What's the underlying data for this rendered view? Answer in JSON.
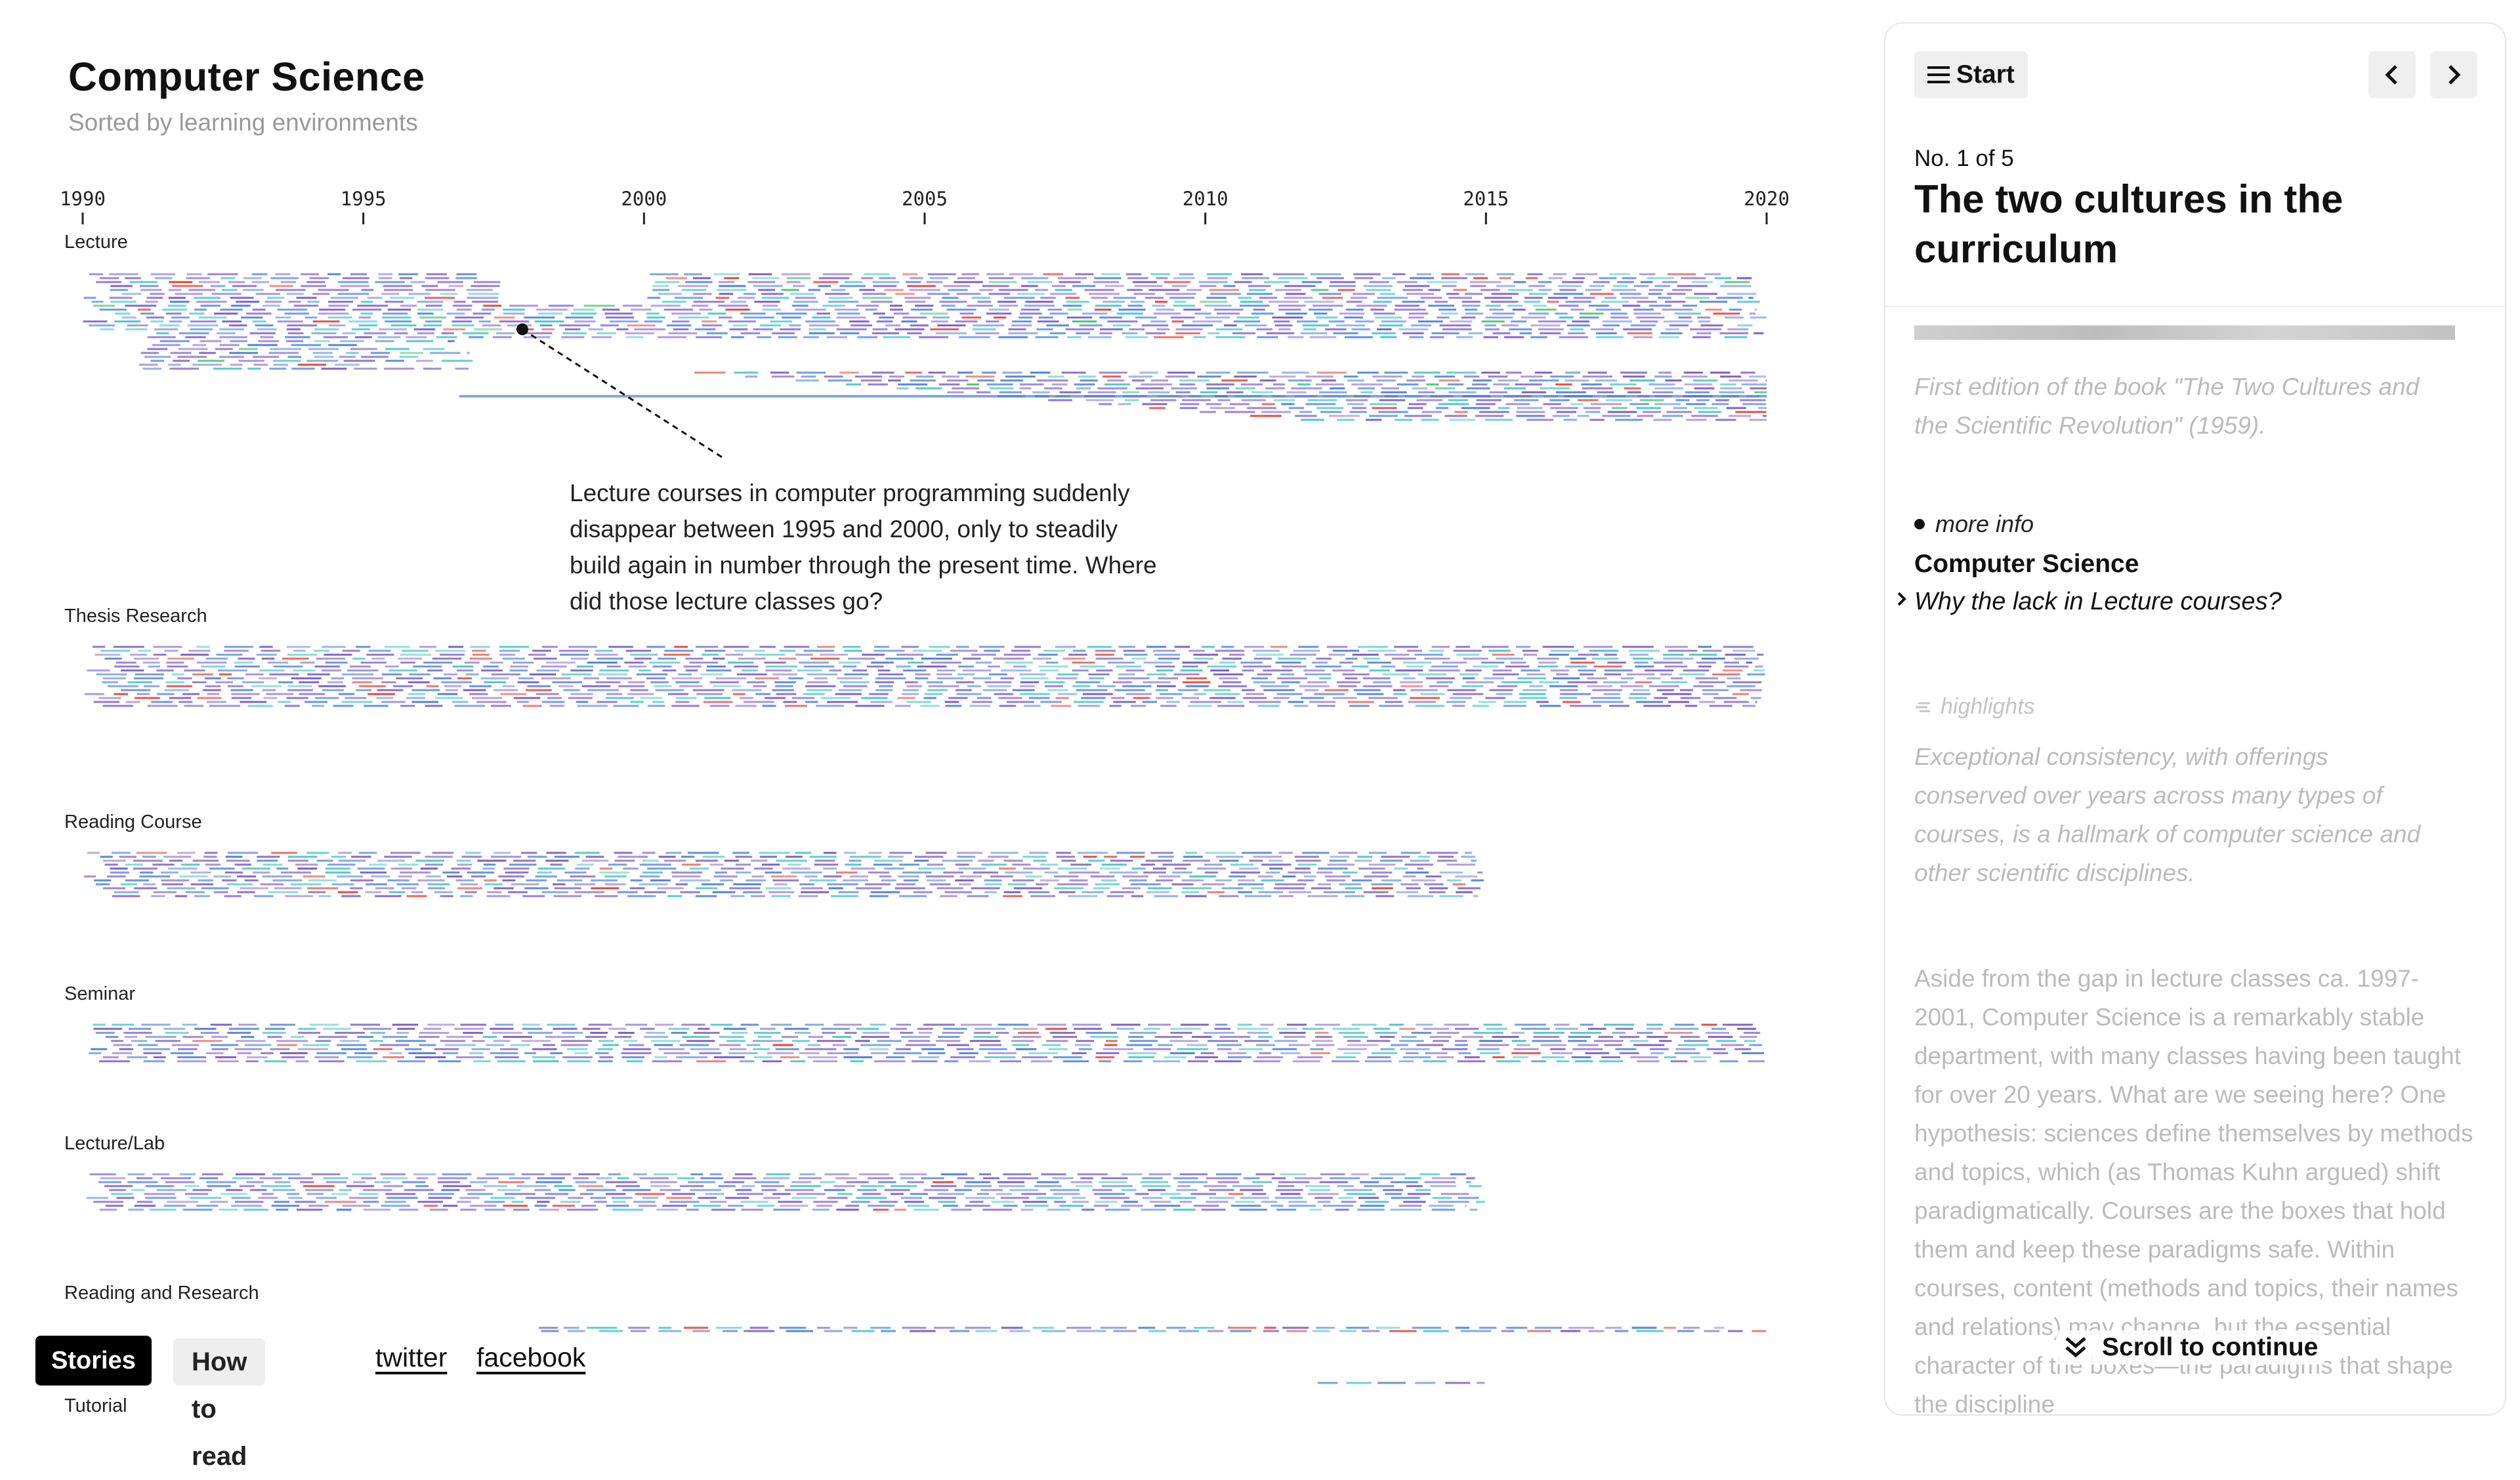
{
  "header": {
    "title": "Computer Science",
    "subtitle": "Sorted by learning environments"
  },
  "chart_data": {
    "type": "timeline",
    "x_ticks": [
      "1990",
      "1995",
      "2000",
      "2005",
      "2010",
      "2015",
      "2020"
    ],
    "x_range": [
      1990,
      2020
    ],
    "groups": [
      {
        "name": "Lecture",
        "start": 1990,
        "end": 2020,
        "rows": 38,
        "gap": [
          1997,
          2000
        ]
      },
      {
        "name": "Thesis Research",
        "start": 1990,
        "end": 2020,
        "rows": 16
      },
      {
        "name": "Reading Course",
        "start": 1990,
        "end": 2015,
        "rows": 12
      },
      {
        "name": "Seminar",
        "start": 1990,
        "end": 2020,
        "rows": 10
      },
      {
        "name": "Lecture/Lab",
        "start": 1990,
        "end": 2015,
        "rows": 10
      },
      {
        "name": "Reading and Research",
        "start": 1998,
        "end": 2020,
        "rows": 2
      },
      {
        "name": "Tutorial",
        "start": 2012,
        "end": 2015,
        "rows": 1
      }
    ]
  },
  "annotation": {
    "text": "Lecture courses in computer programming suddenly disappear between 1995 and 2000, only to steadily build again in number through the present time. Where did those lecture classes go?"
  },
  "footer": {
    "stories_label": "Stories",
    "howto_label": "How to read",
    "twitter_label": "twitter",
    "facebook_label": "facebook"
  },
  "panel": {
    "start_label": "Start",
    "count": "No. 1 of 5",
    "title": "The two cultures in the curriculum",
    "caption": "First edition of the book \"The Two Cultures and the Scientific Revolution\" (1959).",
    "more_info_label": "more info",
    "info_title": "Computer Science",
    "info_question": "Why the lack in Lecture courses?",
    "highlights_label": "highlights",
    "highlight_text": "Exceptional consistency, with offerings conserved over years across many types of courses, is a hallmark of computer science and other scientific disciplines.",
    "body_text": "Aside from the gap in lecture classes ca. 1997-2001, Computer Science is a remarkably stable department, with many classes having been taught for over 20 years. What are we seeing here? One hypothesis: sciences define themselves by methods and topics, which (as Thomas Kuhn argued) shift paradigmatically. Courses are the boxes that hold them and keep these paradigms safe. Within courses, content (methods and topics, their names and relations) may change, but the essential character of the boxes—the paradigms that shape the discipline",
    "scroll_label": "Scroll to continue"
  },
  "colors": {
    "accent_purple": "#7a5cc4",
    "accent_blue": "#4f7fd6",
    "accent_red": "#e0463a",
    "accent_teal": "#4cc6c6",
    "accent_green": "#4bc46b"
  },
  "icons": [
    "menu-icon",
    "chevron-left-icon",
    "chevron-right-icon",
    "chevron-right-small-icon",
    "highlights-icon",
    "double-chevron-down-icon"
  ]
}
